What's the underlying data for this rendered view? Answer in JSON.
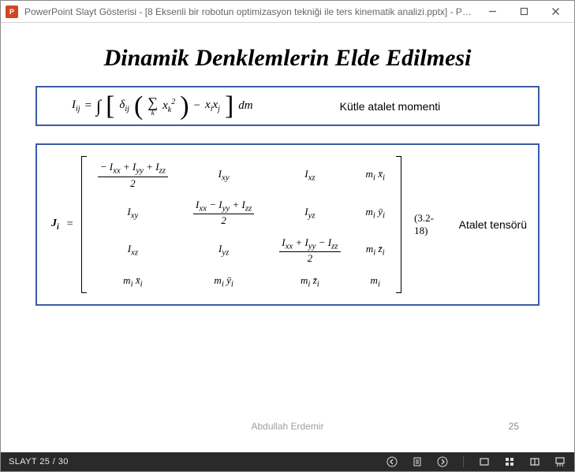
{
  "window": {
    "app_icon_text": "P",
    "title": "PowerPoint Slayt Gösterisi - [8 Eksenli bir robotun optimizasyon tekniği ile ters kinematik analizi.pptx] - PowerPoi..."
  },
  "slide": {
    "title": "Dinamik Denklemlerin Elde Edilmesi",
    "eq1": {
      "lhs": "I",
      "lhs_sub": "ij",
      "eq": "=",
      "int": "∫",
      "delta": "δ",
      "delta_sub": "ij",
      "sigma": "∑",
      "sigma_idx": "k",
      "xsq": "x",
      "xsq_sub": "k",
      "xsq_sup": "2",
      "minus": "−",
      "xi": "x",
      "xi_sub": "i",
      "xj": "x",
      "xj_sub": "j",
      "dm": "dm",
      "label": "Kütle atalet momenti"
    },
    "eq2": {
      "J": "J",
      "J_sub": "i",
      "eq": "=",
      "cells": {
        "r1c1_num": "− I<sub>xx</sub> + I<sub>yy</sub> + I<sub>zz</sub>",
        "r1c1_den": "2",
        "r1c2": "I<sub>xy</sub>",
        "r1c3": "I<sub>xz</sub>",
        "r1c4": "m<sub>i</sub> x̄<sub>i</sub>",
        "r2c1": "I<sub>xy</sub>",
        "r2c2_num": "I<sub>xx</sub> − I<sub>yy</sub> + I<sub>zz</sub>",
        "r2c2_den": "2",
        "r2c3": "I<sub>yz</sub>",
        "r2c4": "m<sub>i</sub> ȳ<sub>i</sub>",
        "r3c1": "I<sub>xz</sub>",
        "r3c2": "I<sub>yz</sub>",
        "r3c3_num": "I<sub>xx</sub> + I<sub>yy</sub> − I<sub>zz</sub>",
        "r3c3_den": "2",
        "r3c4": "m<sub>i</sub> z̄<sub>i</sub>",
        "r4c1": "m<sub>i</sub> x̄<sub>i</sub>",
        "r4c2": "m<sub>i</sub> ȳ<sub>i</sub>",
        "r4c3": "m<sub>i</sub> z̄<sub>i</sub>",
        "r4c4": "m<sub>i</sub>"
      },
      "eqnum": "(3.2-18)",
      "label": "Atalet tensörü"
    },
    "author": "Abdullah Erdemir",
    "page_number": "25"
  },
  "statusbar": {
    "counter": "SLAYT 25 / 30"
  },
  "colors": {
    "box_border": "#3b5ba5",
    "pp_orange": "#d24726",
    "statusbar_bg": "#2a2a2a"
  }
}
